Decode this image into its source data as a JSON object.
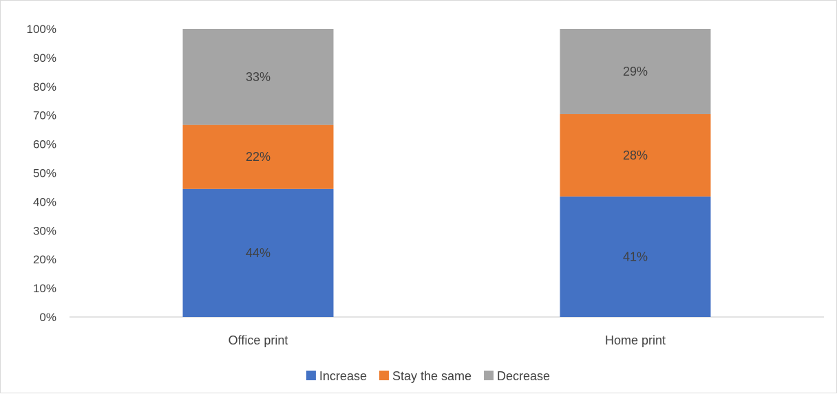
{
  "chart_data": {
    "type": "bar",
    "stacked": "percent",
    "categories": [
      "Office print",
      "Home print"
    ],
    "series": [
      {
        "name": "Increase",
        "values": [
          44,
          41
        ],
        "labels": [
          "44%",
          "41%"
        ],
        "color": "#4472c4"
      },
      {
        "name": "Stay the same",
        "values": [
          22,
          28
        ],
        "labels": [
          "22%",
          "28%"
        ],
        "color": "#ed7d31"
      },
      {
        "name": "Decrease",
        "values": [
          33,
          29
        ],
        "labels": [
          "33%",
          "29%"
        ],
        "color": "#a5a5a5"
      }
    ],
    "yticks": [
      "0%",
      "10%",
      "20%",
      "30%",
      "40%",
      "50%",
      "60%",
      "70%",
      "80%",
      "90%",
      "100%"
    ],
    "ylim": [
      0,
      100
    ],
    "grid": false,
    "legend_position": "bottom"
  }
}
